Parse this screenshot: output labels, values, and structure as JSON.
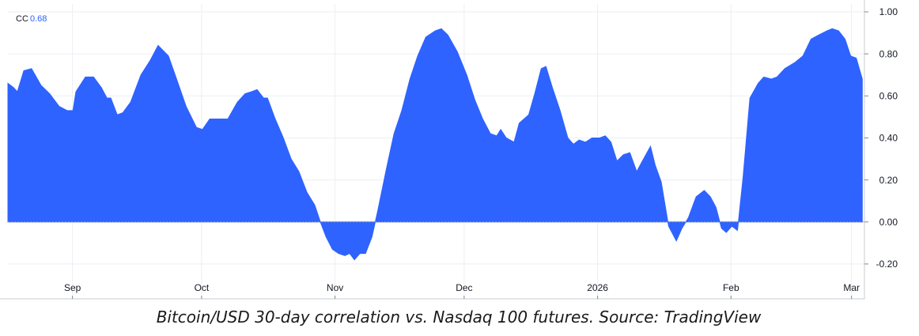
{
  "chart_data": {
    "type": "area",
    "caption": "Bitcoin/USD 30-day correlation vs. Nasdaq 100 futures. Source: TradingView",
    "legend_label": "CC",
    "current_value": 0.68,
    "x": [
      0,
      1.3,
      2.2,
      3.7,
      5.5,
      7.7,
      9.7,
      11.9,
      13.8,
      15.1,
      15.8,
      18,
      19.9,
      21.7,
      23,
      23.9,
      25.4,
      26.7,
      28.5,
      30.9,
      33.1,
      34.9,
      37.3,
      39.2,
      41.4,
      43.8,
      45.2,
      46.9,
      49.3,
      51.1,
      53.3,
      55.1,
      56.6,
      57.9,
      59.4,
      60.3,
      62.1,
      64,
      65.8,
      67.6,
      69.5,
      71.3,
      72.6,
      73.9,
      75.4,
      76.8,
      78.3,
      79.4,
      80.5,
      81.8,
      83.1,
      84.6,
      86,
      87.9,
      89.7,
      91.5,
      93.4,
      95.2,
      97.1,
      99.3,
      100.7,
      102.2,
      104.4,
      106.6,
      108.5,
      110.3,
      112.1,
      113.6,
      114.5,
      115.8,
      117.6,
      118.8,
      121,
      122.4,
      123.9,
      125,
      126.5,
      128.3,
      130.1,
      131.4,
      132.7,
      134.2,
      135.7,
      137.5,
      138.8,
      140.1,
      141.5,
      143,
      144.5,
      146.1,
      147.4,
      149.3,
      150.4,
      151.8,
      153.5,
      155.3,
      156.6,
      158.1,
      159.9,
      161.8,
      163.2,
      164.5,
      165.8,
      166.9,
      168.2,
      169.5,
      170.8,
      172.4,
      174.3,
      175.6,
      177.4,
      178.7,
      180.5,
      182.9,
      184.7,
      186.6,
      188.4,
      190.3,
      191.5,
      193,
      194.5,
      195.8,
      197.1,
      198.5
    ],
    "series": [
      {
        "name": "CC",
        "color": "#2e63ff",
        "values": [
          0.66,
          0.64,
          0.62,
          0.72,
          0.73,
          0.65,
          0.61,
          0.55,
          0.53,
          0.53,
          0.62,
          0.69,
          0.69,
          0.64,
          0.59,
          0.59,
          0.51,
          0.52,
          0.57,
          0.7,
          0.77,
          0.84,
          0.79,
          0.68,
          0.55,
          0.45,
          0.44,
          0.49,
          0.49,
          0.49,
          0.57,
          0.61,
          0.62,
          0.63,
          0.59,
          0.59,
          0.49,
          0.4,
          0.3,
          0.24,
          0.14,
          0.08,
          0.0,
          -0.07,
          -0.13,
          -0.15,
          -0.16,
          -0.15,
          -0.18,
          -0.15,
          -0.15,
          -0.07,
          0.06,
          0.25,
          0.42,
          0.53,
          0.68,
          0.79,
          0.88,
          0.91,
          0.92,
          0.89,
          0.81,
          0.7,
          0.58,
          0.49,
          0.42,
          0.41,
          0.44,
          0.4,
          0.38,
          0.47,
          0.51,
          0.61,
          0.73,
          0.74,
          0.64,
          0.53,
          0.4,
          0.37,
          0.39,
          0.38,
          0.4,
          0.4,
          0.41,
          0.38,
          0.29,
          0.32,
          0.33,
          0.24,
          0.29,
          0.36,
          0.27,
          0.19,
          -0.02,
          -0.09,
          -0.03,
          0.02,
          0.12,
          0.15,
          0.12,
          0.07,
          -0.03,
          -0.05,
          -0.02,
          -0.04,
          0.21,
          0.59,
          0.66,
          0.69,
          0.68,
          0.69,
          0.73,
          0.76,
          0.79,
          0.87,
          0.89,
          0.91,
          0.92,
          0.91,
          0.87,
          0.79,
          0.78,
          0.68
        ]
      }
    ],
    "xlim": [
      0,
      199
    ],
    "xticks": [
      {
        "value": 15,
        "label": "Sep"
      },
      {
        "value": 45,
        "label": "Oct"
      },
      {
        "value": 76,
        "label": "Nov"
      },
      {
        "value": 106,
        "label": "Dec"
      },
      {
        "value": 137,
        "label": "2026"
      },
      {
        "value": 168,
        "label": "Feb"
      },
      {
        "value": 196,
        "label": "Mar"
      }
    ],
    "ylim": [
      -0.238,
      1.0
    ],
    "yticks": [
      {
        "value": 1,
        "label": "1.00"
      },
      {
        "value": 0.8,
        "label": "0.80"
      },
      {
        "value": 0.6,
        "label": "0.60"
      },
      {
        "value": 0.4,
        "label": "0.40"
      },
      {
        "value": 0.2,
        "label": "0.20"
      },
      {
        "value": 0,
        "label": "0.00"
      },
      {
        "value": -0.2,
        "label": "-0.20"
      }
    ],
    "grid": true
  }
}
